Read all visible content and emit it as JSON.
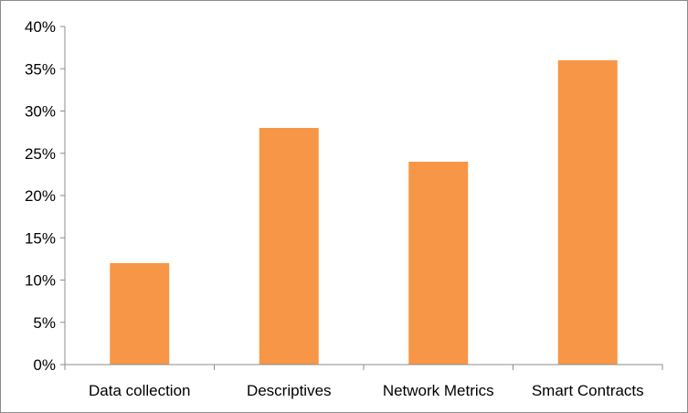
{
  "chart_data": {
    "type": "bar",
    "categories": [
      "Data collection",
      "Descriptives",
      "Network Metrics",
      "Smart Contracts"
    ],
    "values": [
      12,
      28,
      24,
      36
    ],
    "yticks": [
      "0%",
      "5%",
      "10%",
      "15%",
      "20%",
      "25%",
      "30%",
      "35%",
      "40%"
    ],
    "ylim": [
      0,
      40
    ],
    "bar_color": "#f79646",
    "axis_color": "#8c8c8c",
    "grid": false,
    "legend": false
  }
}
